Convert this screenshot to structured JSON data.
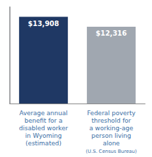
{
  "chart_data": {
    "type": "bar",
    "categories": [
      "Average annual\nbenefit for a\ndisabled worker\nin Wyoming\n(estimated)",
      "Federal poverty\nthreshold for\na working-age\nperson living\nalone"
    ],
    "values": [
      13908,
      12316
    ],
    "value_labels": [
      "$13,908",
      "$12,316"
    ],
    "colors": [
      "#1f3864",
      "#a0a7b0"
    ],
    "ylim": [
      0,
      15500
    ],
    "grid": false,
    "data_labels": true,
    "tick_labels": "x",
    "annotations": [
      "(U.S. Census Bureau)"
    ]
  }
}
